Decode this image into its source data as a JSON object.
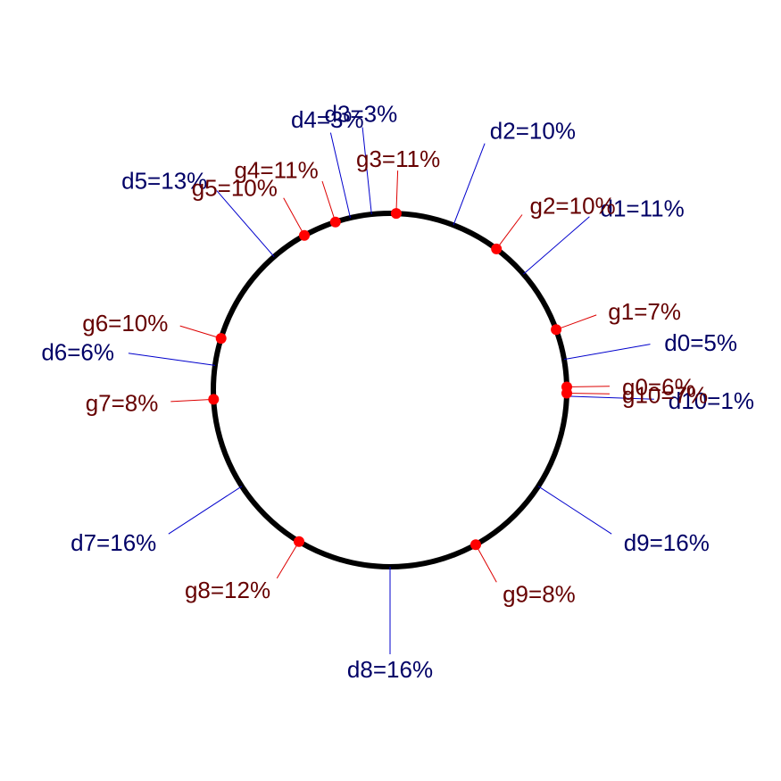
{
  "chart_data": {
    "type": "circular-label-plot",
    "title": "",
    "colors": {
      "circle": "#000000",
      "point": "#ff0000",
      "d_line": "#0000cc",
      "d_text": "#000066",
      "g_line": "#dd0000",
      "g_text": "#660000"
    },
    "series": [
      {
        "group": "d",
        "items": [
          {
            "label": "d0=5%",
            "angle": 10
          },
          {
            "label": "d1=11%",
            "angle": 41
          },
          {
            "label": "d2=10%",
            "angle": 69
          },
          {
            "label": "d3=3%",
            "angle": 96
          },
          {
            "label": "d4=3%",
            "angle": 103
          },
          {
            "label": "d5=13%",
            "angle": 131
          },
          {
            "label": "d6=6%",
            "angle": 172
          },
          {
            "label": "d7=16%",
            "angle": 213
          },
          {
            "label": "d8=16%",
            "angle": 270
          },
          {
            "label": "d9=16%",
            "angle": 327
          },
          {
            "label": "d10=1%",
            "angle": 358
          }
        ]
      },
      {
        "group": "g",
        "items": [
          {
            "label": "g0=6%",
            "angle": 1,
            "marker": true
          },
          {
            "label": "g1=7%",
            "angle": 20,
            "marker": true
          },
          {
            "label": "g2=10%",
            "angle": 53,
            "marker": true
          },
          {
            "label": "g3=11%",
            "angle": 88,
            "marker": true
          },
          {
            "label": "g4=11%",
            "angle": 108,
            "marker": true
          },
          {
            "label": "g5=10%",
            "angle": 119,
            "marker": true
          },
          {
            "label": "g6=10%",
            "angle": 163,
            "marker": true
          },
          {
            "label": "g7=8%",
            "angle": 183,
            "marker": true
          },
          {
            "label": "g8=12%",
            "angle": 239,
            "marker": true
          },
          {
            "label": "g9=8%",
            "angle": 299,
            "marker": true
          },
          {
            "label": "g10=7%",
            "angle": 359,
            "marker": true
          }
        ]
      }
    ]
  }
}
